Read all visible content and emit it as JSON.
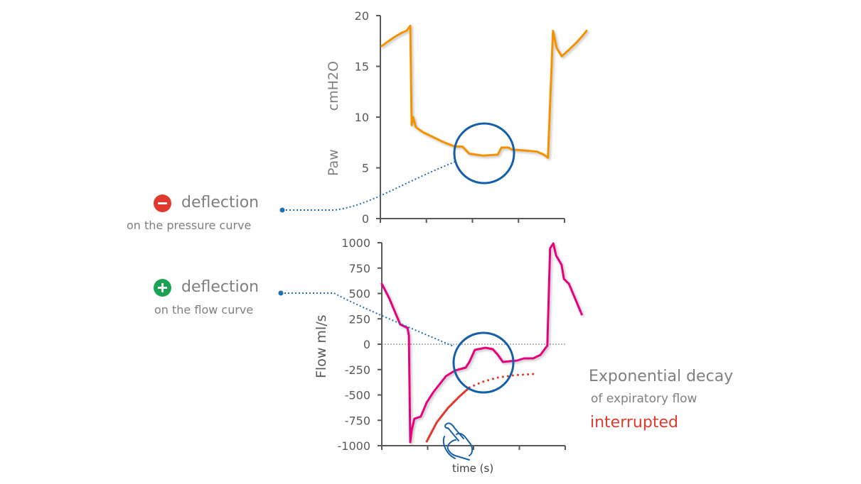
{
  "annotations": {
    "pressure": {
      "sign": "minus",
      "title": "deflection",
      "subtitle": "on the pressure curve",
      "color": "#e03a2f"
    },
    "flow": {
      "sign": "plus",
      "title": "deflection",
      "subtitle": "on the flow curve",
      "color": "#1aa355"
    },
    "decay": {
      "title": "Exponential decay",
      "subtitle": "of expiratory flow",
      "status": "interrupted",
      "status_color": "#e03a2f"
    },
    "hand_icon": "pointing-hand-icon"
  },
  "chart_data": [
    {
      "type": "line",
      "name": "pressure",
      "ylabel": "Paw",
      "yunit": "cmH2O",
      "ylim": [
        0,
        20
      ],
      "yticks": [
        0,
        5,
        10,
        15,
        20
      ],
      "xlim": [
        0,
        4
      ],
      "xticks": [
        0,
        1,
        2,
        3,
        4
      ],
      "color": "#f39200",
      "series": [
        {
          "name": "Paw",
          "points": [
            [
              0.03,
              17.0
            ],
            [
              0.15,
              17.4
            ],
            [
              0.31,
              17.9
            ],
            [
              0.46,
              18.3
            ],
            [
              0.57,
              18.5
            ],
            [
              0.65,
              19.0
            ],
            [
              0.68,
              9.2
            ],
            [
              0.71,
              10.0
            ],
            [
              0.77,
              9.0
            ],
            [
              0.93,
              8.5
            ],
            [
              1.16,
              8.0
            ],
            [
              1.39,
              7.5
            ],
            [
              1.62,
              7.1
            ],
            [
              1.78,
              7.1
            ],
            [
              1.93,
              6.4
            ],
            [
              2.08,
              6.3
            ],
            [
              2.24,
              6.2
            ],
            [
              2.55,
              6.3
            ],
            [
              2.63,
              7.0
            ],
            [
              2.78,
              7.0
            ],
            [
              2.86,
              6.8
            ],
            [
              3.17,
              6.7
            ],
            [
              3.4,
              6.6
            ],
            [
              3.55,
              6.3
            ],
            [
              3.64,
              6.0
            ],
            [
              3.75,
              18.5
            ],
            [
              3.83,
              16.8
            ],
            [
              3.94,
              16.0
            ],
            [
              4.09,
              16.6
            ],
            [
              4.25,
              17.3
            ],
            [
              4.37,
              17.9
            ],
            [
              4.48,
              18.5
            ]
          ]
        }
      ]
    },
    {
      "type": "line",
      "name": "flow",
      "ylabel": "Flow",
      "yunit": "ml/s",
      "xlabel": "time (s)",
      "ylim": [
        -1000,
        1000
      ],
      "yticks": [
        -1000,
        -750,
        -500,
        -250,
        0,
        250,
        500,
        750,
        1000
      ],
      "xlim": [
        0,
        4
      ],
      "xticks": [
        0,
        1,
        2,
        3,
        4
      ],
      "color": "#e6007e",
      "series": [
        {
          "name": "Flow",
          "points": [
            [
              0,
              595
            ],
            [
              0.16,
              455
            ],
            [
              0.4,
              196
            ],
            [
              0.56,
              161
            ],
            [
              0.59,
              84
            ],
            [
              0.62,
              -966
            ],
            [
              0.65,
              -854
            ],
            [
              0.71,
              -735
            ],
            [
              0.85,
              -714
            ],
            [
              0.98,
              -574
            ],
            [
              1.13,
              -469
            ],
            [
              1.4,
              -315
            ],
            [
              1.6,
              -259
            ],
            [
              1.83,
              -231
            ],
            [
              1.91,
              -175
            ],
            [
              2.03,
              -56
            ],
            [
              2.26,
              -35
            ],
            [
              2.42,
              -49
            ],
            [
              2.53,
              -105
            ],
            [
              2.64,
              -175
            ],
            [
              2.95,
              -161
            ],
            [
              3.1,
              -140
            ],
            [
              3.3,
              -140
            ],
            [
              3.46,
              -105
            ],
            [
              3.61,
              -14
            ],
            [
              3.67,
              944
            ],
            [
              3.74,
              993
            ],
            [
              3.8,
              874
            ],
            [
              3.92,
              783
            ],
            [
              3.97,
              644
            ],
            [
              4.08,
              595
            ],
            [
              4.19,
              476
            ],
            [
              4.36,
              294
            ]
          ]
        },
        {
          "name": "Exponential decay (expected)",
          "color": "#e03a2f",
          "points": [
            [
              0.98,
              -958
            ],
            [
              1.2,
              -770
            ],
            [
              1.44,
              -630
            ],
            [
              1.68,
              -520
            ],
            [
              1.91,
              -427
            ]
          ]
        },
        {
          "name": "Exponential decay (extrapolated)",
          "color": "#e03a2f",
          "dotted": true,
          "points": [
            [
              1.91,
              -427
            ],
            [
              2.2,
              -370
            ],
            [
              2.53,
              -329
            ],
            [
              2.9,
              -305
            ],
            [
              3.3,
              -294
            ]
          ]
        }
      ]
    }
  ]
}
